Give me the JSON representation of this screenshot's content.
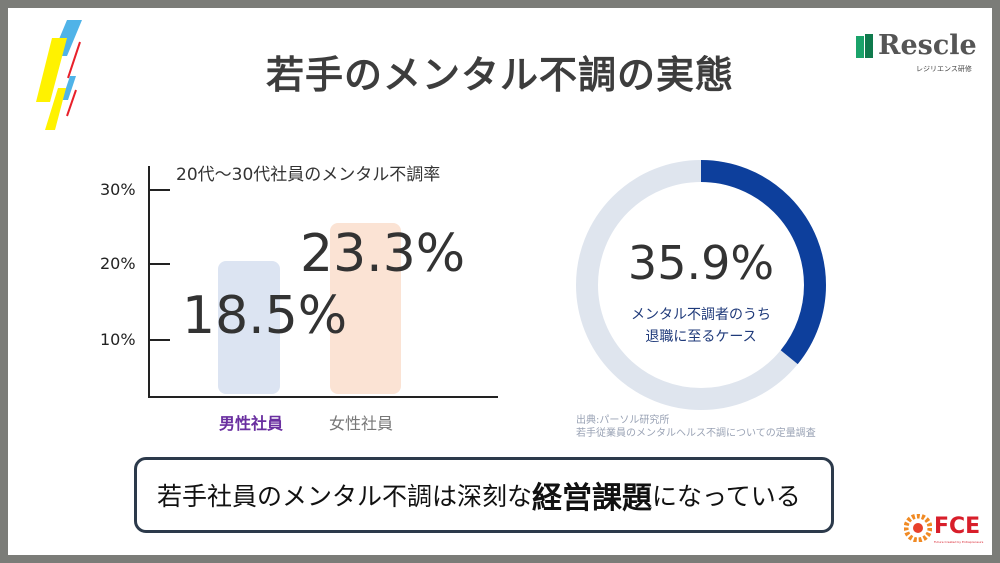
{
  "title": "若手のメンタル不調の実態",
  "logo_rescle": {
    "word": "Rescle",
    "sub": "レジリエンス研修"
  },
  "bar_chart": {
    "title": "20代〜30代社員のメンタル不調率",
    "y_ticks": [
      "30%",
      "20%",
      "10%"
    ],
    "bars": [
      {
        "category": "男性社員",
        "value": 18.5,
        "label": "18.5%",
        "color": "#dce4f2",
        "label_color": "#6a2fa0"
      },
      {
        "category": "女性社員",
        "value": 23.3,
        "label": "23.3%",
        "color": "#fbe3d4",
        "label_color": "#777777"
      }
    ]
  },
  "donut": {
    "value": 35.9,
    "label": "35.9%",
    "caption_line1": "メンタル不調者のうち",
    "caption_line2": "退職に至るケース",
    "fill_color": "#0d3f9c",
    "track_color": "#dfe5ee"
  },
  "source": {
    "line1": "出典:パーソル研究所",
    "line2": "若手従業員のメンタルヘルス不調についての定量調査"
  },
  "message": {
    "pre": "若手社員のメンタル不調は深刻な",
    "emphasis": "経営課題",
    "post": "になっている"
  },
  "logo_fce": {
    "word": "FCE",
    "sub": "Future Created by Entrepreneurs"
  }
}
